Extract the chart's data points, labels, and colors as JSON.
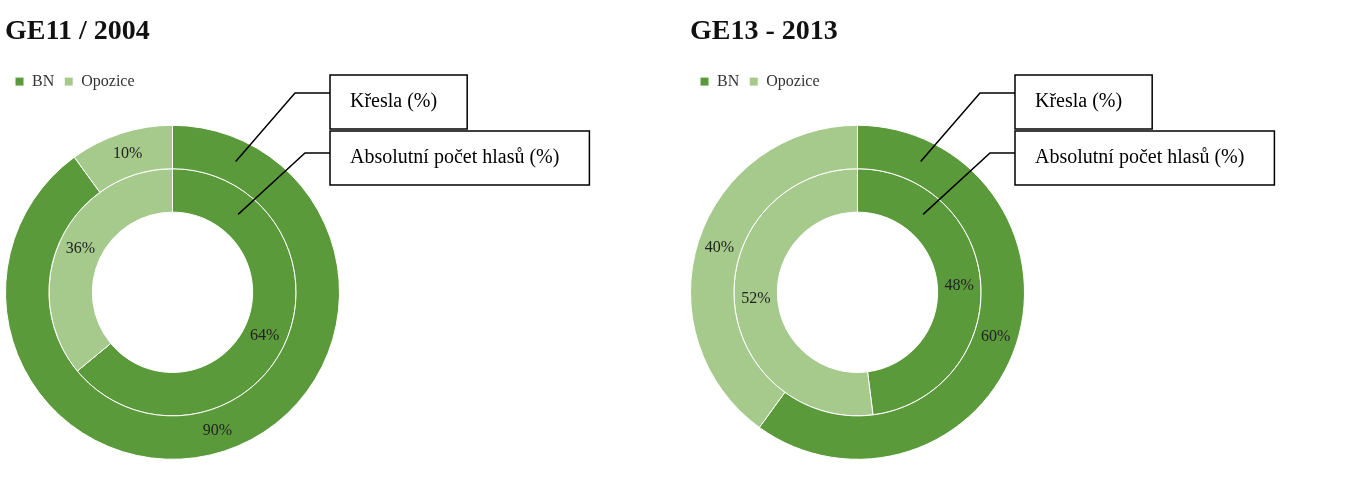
{
  "chart_data": [
    {
      "type": "donut",
      "title": "GE11 / 2004",
      "categories": [
        "BN",
        "Opozice"
      ],
      "legend": "top left",
      "series": [
        {
          "name": "Křesla (%)",
          "values": [
            90,
            10
          ],
          "value_labels": [
            "90%",
            "10%"
          ],
          "colors": [
            "#5b9a3a",
            "#a5ca8c"
          ]
        },
        {
          "name": "Absolutní počet hlasů (%)",
          "values": [
            64,
            36
          ],
          "value_labels": [
            "64%",
            "36%"
          ],
          "colors": [
            "#5b9a3a",
            "#a5ca8c"
          ]
        }
      ]
    },
    {
      "type": "donut",
      "title": "GE13 - 2013",
      "categories": [
        "BN",
        "Opozice"
      ],
      "legend": "top left",
      "series": [
        {
          "name": "Křesla (%)",
          "values": [
            60,
            40
          ],
          "value_labels": [
            "60%",
            "40%"
          ],
          "colors": [
            "#5b9a3a",
            "#a5ca8c"
          ]
        },
        {
          "name": "Absolutní počet hlasů (%)",
          "values": [
            48,
            52
          ],
          "value_labels": [
            "48%",
            "52%"
          ],
          "colors": [
            "#5b9a3a",
            "#a5ca8c"
          ]
        }
      ]
    }
  ]
}
